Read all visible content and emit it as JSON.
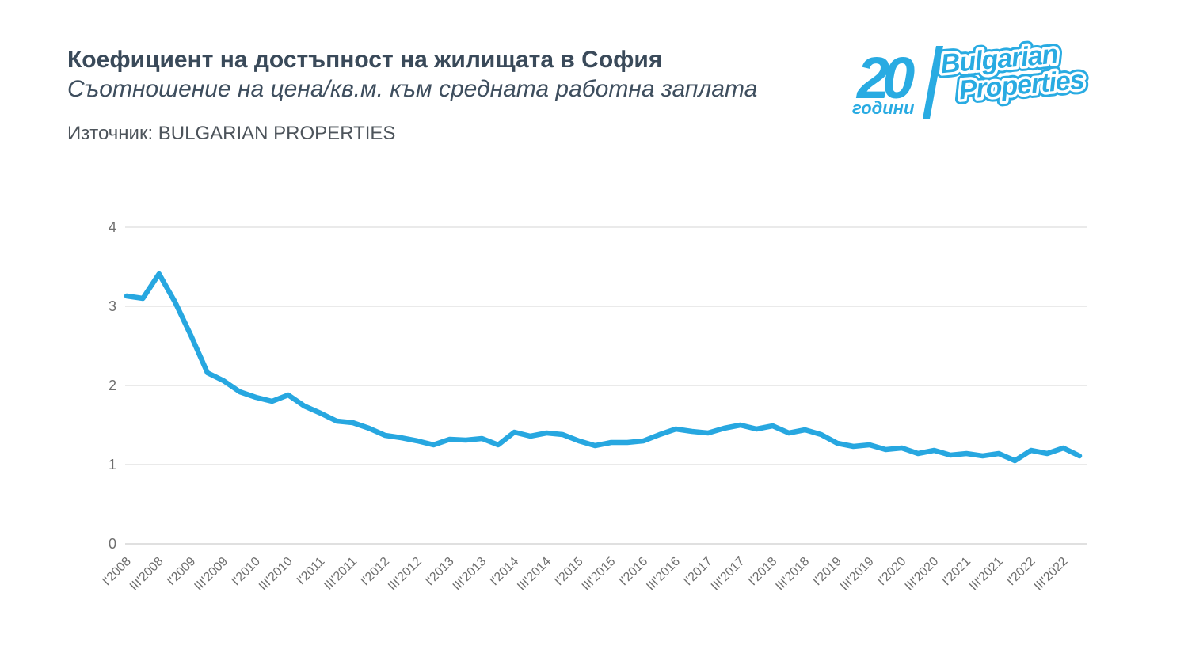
{
  "header": {
    "title": "Коефициент на достъпност на жилищата в София",
    "subtitle": "Съотношение на цена/кв.м. към средната работна заплата",
    "source": "Източник: BULGARIAN PROPERTIES"
  },
  "logo": {
    "number": "20",
    "years_word": "години",
    "brand_line1": "Bulgarian",
    "brand_line2": "Properties",
    "color": "#29abe2"
  },
  "colors": {
    "line": "#27a7e0",
    "grid": "#e3e3e3",
    "zero_line": "#d6d6d6",
    "tick_label": "#6e6e6e",
    "title_text": "#3a4a5a"
  },
  "chart_data": {
    "type": "line",
    "title": "Коефициент на достъпност на жилищата в София",
    "subtitle": "Съотношение на цена/кв.м. към средната работна заплата",
    "source": "Източник: BULGARIAN PROPERTIES",
    "xlabel": "",
    "ylabel": "",
    "ylim": [
      0,
      4
    ],
    "y_ticks": [
      0,
      1,
      2,
      3,
      4
    ],
    "grid": "horizontal",
    "legend": "none",
    "x": [
      "I'2008",
      "II'2008",
      "III'2008",
      "IV'2008",
      "I'2009",
      "II'2009",
      "III'2009",
      "IV'2009",
      "I'2010",
      "II'2010",
      "III'2010",
      "IV'2010",
      "I'2011",
      "II'2011",
      "III'2011",
      "IV'2011",
      "I'2012",
      "II'2012",
      "III'2012",
      "IV'2012",
      "I'2013",
      "II'2013",
      "III'2013",
      "IV'2013",
      "I'2014",
      "II'2014",
      "III'2014",
      "IV'2014",
      "I'2015",
      "II'2015",
      "III'2015",
      "IV'2015",
      "I'2016",
      "II'2016",
      "III'2016",
      "IV'2016",
      "I'2017",
      "II'2017",
      "III'2017",
      "IV'2017",
      "I'2018",
      "II'2018",
      "III'2018",
      "IV'2018",
      "I'2019",
      "II'2019",
      "III'2019",
      "IV'2019",
      "I'2020",
      "II'2020",
      "III'2020",
      "IV'2020",
      "I'2021",
      "II'2021",
      "III'2021",
      "IV'2021",
      "I'2022",
      "II'2022",
      "III'2022",
      "IV'2022"
    ],
    "values": [
      3.13,
      3.1,
      3.41,
      3.05,
      2.62,
      2.16,
      2.06,
      1.92,
      1.85,
      1.8,
      1.88,
      1.74,
      1.65,
      1.55,
      1.53,
      1.46,
      1.37,
      1.34,
      1.3,
      1.25,
      1.32,
      1.31,
      1.33,
      1.25,
      1.41,
      1.36,
      1.4,
      1.38,
      1.3,
      1.24,
      1.28,
      1.28,
      1.3,
      1.38,
      1.45,
      1.42,
      1.4,
      1.46,
      1.5,
      1.45,
      1.49,
      1.4,
      1.44,
      1.38,
      1.27,
      1.23,
      1.25,
      1.19,
      1.21,
      1.14,
      1.18,
      1.12,
      1.14,
      1.11,
      1.14,
      1.05,
      1.18,
      1.14,
      1.21,
      1.11
    ],
    "x_tick_labels": [
      "I'2008",
      "III'2008",
      "I'2009",
      "III'2009",
      "I'2010",
      "III'2010",
      "I'2011",
      "III'2011",
      "I'2012",
      "III'2012",
      "I'2013",
      "III'2013",
      "I'2014",
      "III'2014",
      "I'2015",
      "III'2015",
      "I'2016",
      "III'2016",
      "I'2017",
      "III'2017",
      "I'2018",
      "III'2018",
      "I'2019",
      "III'2019",
      "I'2020",
      "III'2020",
      "I'2021",
      "III'2021",
      "I'2022",
      "III'2022"
    ],
    "x_tick_every": 2,
    "line_color": "#27a7e0",
    "line_width": 6.5
  }
}
